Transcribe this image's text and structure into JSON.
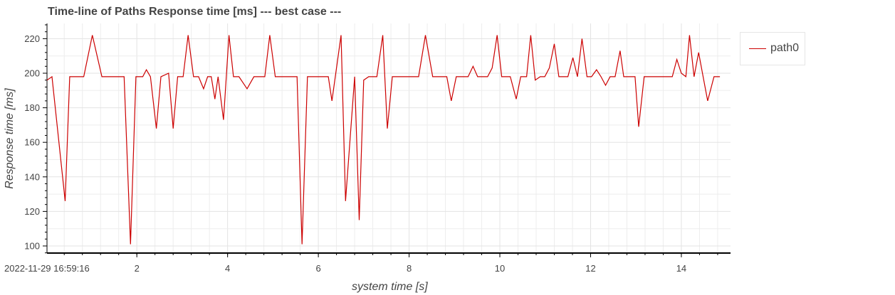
{
  "chart_data": {
    "type": "line",
    "title": "Time-line of Paths Response time [ms] --- best case ---",
    "xlabel": "system time [s]",
    "ylabel": "Response time [ms]",
    "xlim": [
      0,
      14.9
    ],
    "ylim": [
      96,
      230
    ],
    "x_start_label": "2022-11-29 16:59:16",
    "x_ticks": [
      2,
      4,
      6,
      8,
      10,
      12,
      14
    ],
    "y_ticks": [
      100,
      120,
      140,
      160,
      180,
      200,
      220
    ],
    "grid": true,
    "legend_position": "right",
    "series": [
      {
        "name": "path0",
        "color": "#cc0000",
        "x": [
          0.02,
          0.13,
          0.42,
          0.52,
          0.73,
          0.83,
          1.02,
          1.23,
          1.43,
          1.58,
          1.72,
          1.86,
          1.98,
          2.13,
          2.21,
          2.3,
          2.43,
          2.53,
          2.7,
          2.8,
          2.9,
          3.02,
          3.13,
          3.25,
          3.36,
          3.47,
          3.56,
          3.64,
          3.72,
          3.79,
          3.91,
          4.03,
          4.13,
          4.25,
          4.43,
          4.58,
          4.7,
          4.82,
          4.93,
          5.05,
          5.39,
          5.53,
          5.64,
          5.76,
          5.88,
          6.0,
          6.11,
          6.22,
          6.3,
          6.5,
          6.6,
          6.8,
          6.9,
          7.0,
          7.11,
          7.29,
          7.42,
          7.52,
          7.63,
          7.74,
          7.86,
          7.98,
          8.09,
          8.21,
          8.36,
          8.52,
          8.62,
          8.83,
          8.93,
          9.04,
          9.19,
          9.3,
          9.41,
          9.51,
          9.62,
          9.73,
          9.83,
          9.94,
          10.04,
          10.15,
          10.23,
          10.36,
          10.46,
          10.59,
          10.68,
          10.78,
          10.89,
          10.99,
          11.09,
          11.2,
          11.3,
          11.4,
          11.5,
          11.61,
          11.71,
          11.81,
          11.92,
          12.02,
          12.13,
          12.23,
          12.33,
          12.43,
          12.54,
          12.65,
          12.73,
          12.85,
          12.98,
          13.06,
          13.18,
          13.25,
          13.38,
          13.5,
          13.62,
          13.7,
          13.8,
          13.9,
          14.0,
          14.1,
          14.18,
          14.28,
          14.38,
          14.48,
          14.58,
          14.72,
          14.85
        ],
        "values": [
          196,
          198,
          126,
          198,
          198,
          198,
          222,
          198,
          198,
          198,
          198,
          101,
          198,
          198,
          202,
          198,
          168,
          198,
          200,
          168,
          198,
          198,
          222,
          198,
          198,
          191,
          198,
          198,
          185,
          198,
          173,
          222,
          198,
          198,
          191,
          198,
          198,
          198,
          222,
          198,
          198,
          198,
          101,
          198,
          198,
          198,
          198,
          198,
          184,
          222,
          126,
          198,
          115,
          196,
          198,
          198,
          222,
          168,
          198,
          198,
          198,
          198,
          198,
          198,
          222,
          198,
          198,
          198,
          184,
          198,
          198,
          198,
          204,
          198,
          198,
          198,
          203,
          222,
          198,
          198,
          198,
          185,
          198,
          198,
          222,
          196,
          198,
          198,
          203,
          217,
          198,
          198,
          198,
          209,
          198,
          220,
          198,
          198,
          202,
          198,
          193,
          198,
          198,
          213,
          198,
          198,
          198,
          169,
          198,
          198,
          198,
          198,
          198,
          198,
          198,
          208,
          200,
          198,
          222,
          198,
          212,
          198,
          184,
          198,
          198
        ]
      }
    ]
  }
}
